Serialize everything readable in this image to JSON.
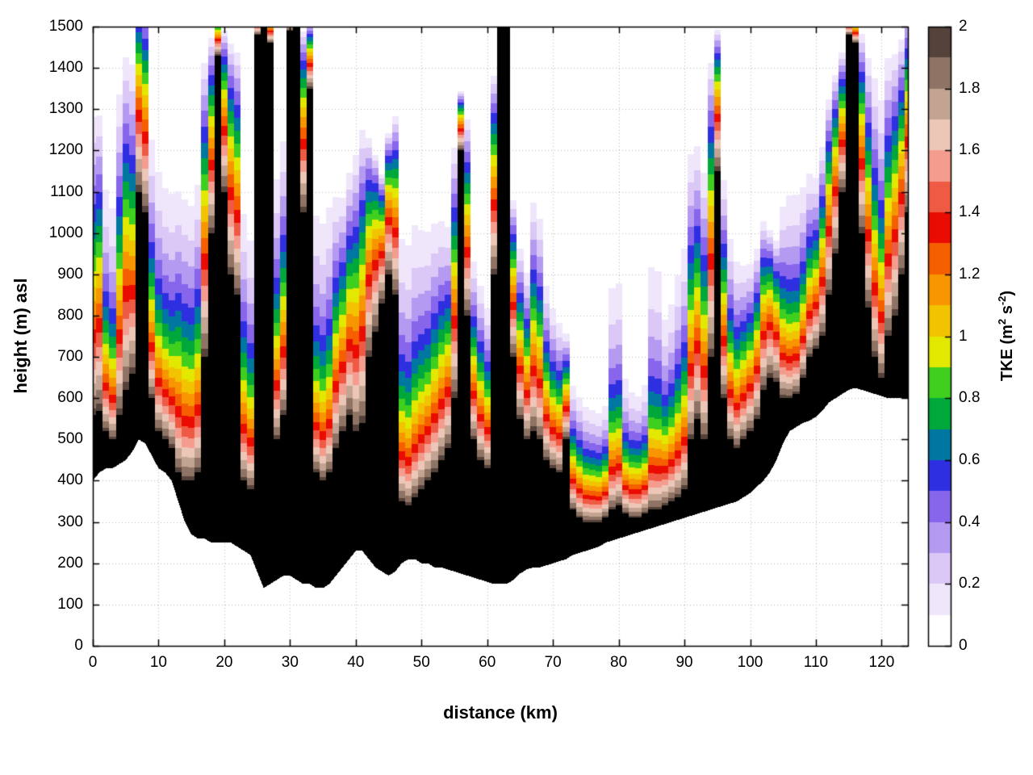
{
  "figure": {
    "background": "#ffffff"
  },
  "chart_data": {
    "type": "heatmap",
    "title": "",
    "xlabel": "distance (km)",
    "ylabel": "height (m) asl",
    "xlim": [
      0,
      124
    ],
    "ylim": [
      0,
      1500
    ],
    "grid": true,
    "grid_style": "dotted",
    "legend_position": "colorbar-right",
    "xticks": {
      "values": [
        0,
        10,
        20,
        30,
        40,
        50,
        60,
        70,
        80,
        90,
        100,
        110,
        120
      ],
      "labels": [
        "0",
        "10",
        "20",
        "30",
        "40",
        "50",
        "60",
        "70",
        "80",
        "90",
        "100",
        "110",
        "120"
      ]
    },
    "yticks": {
      "values": [
        0,
        100,
        200,
        300,
        400,
        500,
        600,
        700,
        800,
        900,
        1000,
        1100,
        1200,
        1300,
        1400,
        1500
      ],
      "labels": [
        "0",
        "100",
        "200",
        "300",
        "400",
        "500",
        "600",
        "700",
        "800",
        "900",
        "1000",
        "1100",
        "1200",
        "1300",
        "1400",
        "1500"
      ]
    },
    "colorbar": {
      "label_parts": {
        "prefix": "TKE (m",
        "sup1": "2",
        "mid": " s",
        "sup2": "-2",
        "suffix": ")"
      },
      "range": [
        0,
        2
      ],
      "ticks": {
        "values": [
          0,
          0.2,
          0.4,
          0.6,
          0.8,
          1,
          1.2,
          1.4,
          1.6,
          1.8,
          2
        ],
        "labels": [
          "0",
          "0.2",
          "0.4",
          "0.6",
          "0.8",
          "1",
          "1.2",
          "1.4",
          "1.6",
          "1.8",
          "2"
        ]
      },
      "band_width": 0.1,
      "band_colors": [
        "#ffffff",
        "#efe6fb",
        "#dcc8f7",
        "#b59af2",
        "#8766ec",
        "#2f2fe2",
        "#0077a0",
        "#00a83c",
        "#3fd01f",
        "#e3e800",
        "#f2c300",
        "#f79600",
        "#f55f00",
        "#ea0c00",
        "#ef5a45",
        "#f49d8f",
        "#ecc7b8",
        "#c3a492",
        "#8f7465",
        "#55423a",
        "#000000"
      ]
    },
    "field_model": {
      "description": "Estimated vertical TKE structure per 1 km of distance. Each column: [terrain_height_m, black_top_m (TKE>=2), tke_zero_top_m, decay_exponent]. Below terrain: no data (white). Below black_top: TKE ~2. Above: TKE = 1.95*(1-u)^p with u=(h-black_top)/(top-black_top).",
      "x_step_km": 1,
      "columns": [
        [
          400,
          560,
          1380,
          1.4
        ],
        [
          420,
          570,
          1350,
          1.2
        ],
        [
          430,
          520,
          1450,
          3.0
        ],
        [
          430,
          500,
          1460,
          3.4
        ],
        [
          440,
          560,
          1480,
          1.6
        ],
        [
          450,
          620,
          1500,
          1.2
        ],
        [
          470,
          660,
          1510,
          1.4
        ],
        [
          500,
          1100,
          1600,
          0.8
        ],
        [
          490,
          1050,
          1590,
          0.9
        ],
        [
          460,
          600,
          1500,
          2.5
        ],
        [
          430,
          520,
          1480,
          2.8
        ],
        [
          420,
          500,
          1470,
          3.0
        ],
        [
          400,
          480,
          1460,
          3.0
        ],
        [
          350,
          420,
          1300,
          2.0
        ],
        [
          300,
          400,
          1300,
          2.1
        ],
        [
          270,
          400,
          1280,
          2.1
        ],
        [
          260,
          420,
          1320,
          2.0
        ],
        [
          260,
          700,
          1450,
          1.0
        ],
        [
          250,
          1000,
          1490,
          0.9
        ],
        [
          250,
          1430,
          1530,
          0.8
        ],
        [
          250,
          1100,
          1500,
          0.8
        ],
        [
          250,
          900,
          1480,
          0.9
        ],
        [
          240,
          850,
          1470,
          1.0
        ],
        [
          230,
          400,
          1350,
          2.6
        ],
        [
          220,
          380,
          1300,
          2.8
        ],
        [
          180,
          1480,
          1560,
          1.0
        ],
        [
          140,
          1510,
          1570,
          1.0
        ],
        [
          150,
          1460,
          1550,
          1.0
        ],
        [
          160,
          500,
          1350,
          2.2
        ],
        [
          170,
          560,
          1380,
          1.8
        ],
        [
          170,
          1490,
          1560,
          1.0
        ],
        [
          160,
          1510,
          1570,
          1.0
        ],
        [
          150,
          1050,
          1500,
          0.8
        ],
        [
          150,
          1350,
          1520,
          0.9
        ],
        [
          140,
          420,
          1450,
          3.2
        ],
        [
          140,
          400,
          1470,
          3.4
        ],
        [
          150,
          420,
          1440,
          3.0
        ],
        [
          170,
          480,
          1200,
          1.6
        ],
        [
          190,
          520,
          1150,
          1.3
        ],
        [
          210,
          560,
          1200,
          1.2
        ],
        [
          230,
          520,
          1250,
          1.2
        ],
        [
          230,
          540,
          1300,
          1.1
        ],
        [
          210,
          700,
          1250,
          0.9
        ],
        [
          190,
          760,
          1200,
          0.8
        ],
        [
          180,
          830,
          1150,
          0.8
        ],
        [
          170,
          900,
          1250,
          0.8
        ],
        [
          180,
          850,
          1300,
          0.9
        ],
        [
          200,
          350,
          1480,
          3.6
        ],
        [
          210,
          340,
          1500,
          3.8
        ],
        [
          210,
          360,
          1450,
          3.2
        ],
        [
          200,
          380,
          1300,
          2.6
        ],
        [
          200,
          400,
          1250,
          2.4
        ],
        [
          190,
          420,
          1200,
          2.0
        ],
        [
          190,
          450,
          1150,
          1.7
        ],
        [
          185,
          480,
          1100,
          1.5
        ],
        [
          180,
          600,
          1250,
          1.1
        ],
        [
          175,
          1200,
          1350,
          0.9
        ],
        [
          170,
          800,
          1300,
          1.0
        ],
        [
          165,
          500,
          1000,
          1.5
        ],
        [
          160,
          450,
          950,
          1.6
        ],
        [
          155,
          430,
          900,
          1.7
        ],
        [
          150,
          900,
          1400,
          0.9
        ],
        [
          150,
          1530,
          1570,
          1.0
        ],
        [
          150,
          1500,
          1550,
          1.0
        ],
        [
          160,
          700,
          1100,
          1.0
        ],
        [
          175,
          550,
          1000,
          1.2
        ],
        [
          185,
          500,
          950,
          1.3
        ],
        [
          190,
          520,
          1150,
          1.4
        ],
        [
          190,
          500,
          1120,
          1.5
        ],
        [
          195,
          450,
          950,
          1.6
        ],
        [
          200,
          430,
          900,
          1.7
        ],
        [
          205,
          420,
          850,
          1.6
        ],
        [
          210,
          500,
          780,
          1.2
        ],
        [
          220,
          330,
          700,
          1.8
        ],
        [
          225,
          310,
          680,
          1.9
        ],
        [
          230,
          300,
          660,
          2.0
        ],
        [
          235,
          300,
          650,
          2.0
        ],
        [
          240,
          300,
          640,
          2.0
        ],
        [
          250,
          310,
          660,
          2.0
        ],
        [
          255,
          330,
          1250,
          3.4
        ],
        [
          260,
          340,
          1280,
          3.5
        ],
        [
          265,
          320,
          800,
          2.6
        ],
        [
          270,
          310,
          720,
          2.2
        ],
        [
          275,
          310,
          700,
          2.1
        ],
        [
          280,
          320,
          760,
          2.4
        ],
        [
          285,
          330,
          1450,
          4.0
        ],
        [
          290,
          330,
          1430,
          4.0
        ],
        [
          295,
          340,
          1000,
          2.6
        ],
        [
          300,
          350,
          1050,
          2.6
        ],
        [
          305,
          360,
          1150,
          2.6
        ],
        [
          310,
          380,
          1200,
          2.4
        ],
        [
          315,
          500,
          1320,
          1.6
        ],
        [
          320,
          550,
          1300,
          1.4
        ],
        [
          325,
          500,
          1250,
          1.5
        ],
        [
          330,
          700,
          1450,
          1.0
        ],
        [
          335,
          1150,
          1500,
          0.8
        ],
        [
          340,
          600,
          1200,
          1.4
        ],
        [
          345,
          500,
          1100,
          1.8
        ],
        [
          350,
          480,
          1050,
          1.9
        ],
        [
          360,
          500,
          1000,
          1.6
        ],
        [
          370,
          520,
          980,
          1.4
        ],
        [
          385,
          550,
          1000,
          1.2
        ],
        [
          400,
          620,
          1050,
          1.0
        ],
        [
          420,
          650,
          1020,
          0.9
        ],
        [
          450,
          640,
          1000,
          1.0
        ],
        [
          490,
          600,
          1200,
          2.0
        ],
        [
          520,
          600,
          1350,
          2.8
        ],
        [
          530,
          610,
          1380,
          3.0
        ],
        [
          540,
          650,
          1300,
          2.4
        ],
        [
          545,
          700,
          1250,
          1.8
        ],
        [
          555,
          720,
          1200,
          1.5
        ],
        [
          570,
          750,
          1250,
          1.2
        ],
        [
          590,
          850,
          1350,
          1.0
        ],
        [
          600,
          950,
          1400,
          0.9
        ],
        [
          610,
          1100,
          1450,
          0.9
        ],
        [
          620,
          1480,
          1550,
          1.0
        ],
        [
          625,
          1460,
          1540,
          1.0
        ],
        [
          620,
          1000,
          1500,
          0.9
        ],
        [
          615,
          820,
          1480,
          1.2
        ],
        [
          610,
          700,
          1500,
          1.6
        ],
        [
          605,
          650,
          1520,
          2.0
        ],
        [
          600,
          750,
          1500,
          1.3
        ],
        [
          600,
          800,
          1480,
          1.1
        ],
        [
          600,
          900,
          1500,
          1.0
        ],
        [
          600,
          1050,
          1560,
          0.9
        ]
      ]
    }
  }
}
